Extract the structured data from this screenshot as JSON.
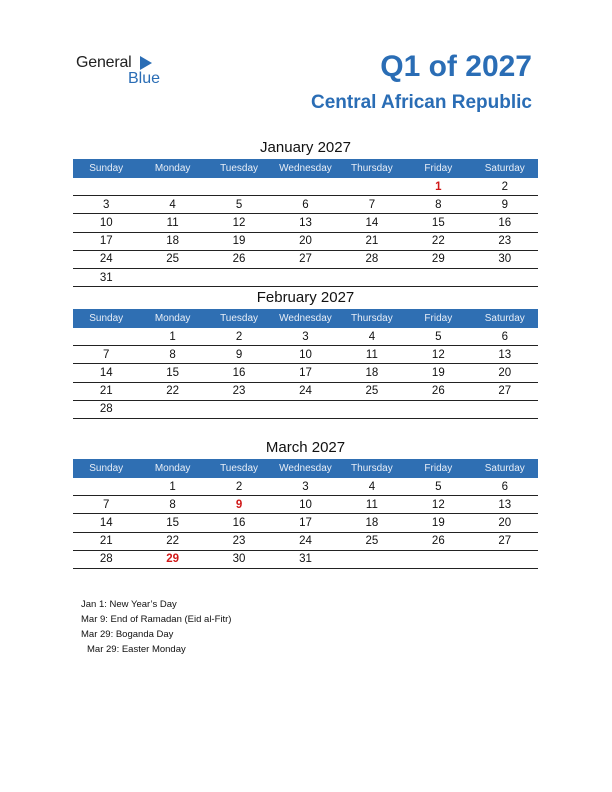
{
  "logo": {
    "general": "General",
    "blue": "Blue"
  },
  "header": {
    "title": "Q1 of 2027",
    "subtitle": "Central African Republic"
  },
  "weekdays": [
    "Sunday",
    "Monday",
    "Tuesday",
    "Wednesday",
    "Thursday",
    "Friday",
    "Saturday"
  ],
  "colors": {
    "accent": "#2f6fb3",
    "holiday": "#d01818"
  },
  "months": [
    {
      "name": "January 2027",
      "weeks": [
        [
          "",
          "",
          "",
          "",
          "",
          "1",
          "2"
        ],
        [
          "3",
          "4",
          "5",
          "6",
          "7",
          "8",
          "9"
        ],
        [
          "10",
          "11",
          "12",
          "13",
          "14",
          "15",
          "16"
        ],
        [
          "17",
          "18",
          "19",
          "20",
          "21",
          "22",
          "23"
        ],
        [
          "24",
          "25",
          "26",
          "27",
          "28",
          "29",
          "30"
        ],
        [
          "31",
          "",
          "",
          "",
          "",
          "",
          ""
        ]
      ],
      "holidays": [
        "1"
      ]
    },
    {
      "name": "February 2027",
      "weeks": [
        [
          "",
          "1",
          "2",
          "3",
          "4",
          "5",
          "6"
        ],
        [
          "7",
          "8",
          "9",
          "10",
          "11",
          "12",
          "13"
        ],
        [
          "14",
          "15",
          "16",
          "17",
          "18",
          "19",
          "20"
        ],
        [
          "21",
          "22",
          "23",
          "24",
          "25",
          "26",
          "27"
        ],
        [
          "28",
          "",
          "",
          "",
          "",
          "",
          ""
        ]
      ],
      "holidays": []
    },
    {
      "name": "March 2027",
      "weeks": [
        [
          "",
          "1",
          "2",
          "3",
          "4",
          "5",
          "6"
        ],
        [
          "7",
          "8",
          "9",
          "10",
          "11",
          "12",
          "13"
        ],
        [
          "14",
          "15",
          "16",
          "17",
          "18",
          "19",
          "20"
        ],
        [
          "21",
          "22",
          "23",
          "24",
          "25",
          "26",
          "27"
        ],
        [
          "28",
          "29",
          "30",
          "31",
          "",
          "",
          ""
        ]
      ],
      "holidays": [
        "9",
        "29"
      ]
    }
  ],
  "notes": [
    "Jan 1: New Year’s Day",
    "Mar 9: End of Ramadan (Eid al-Fitr)",
    "Mar 29: Boganda Day",
    "Mar 29: Easter Monday"
  ]
}
